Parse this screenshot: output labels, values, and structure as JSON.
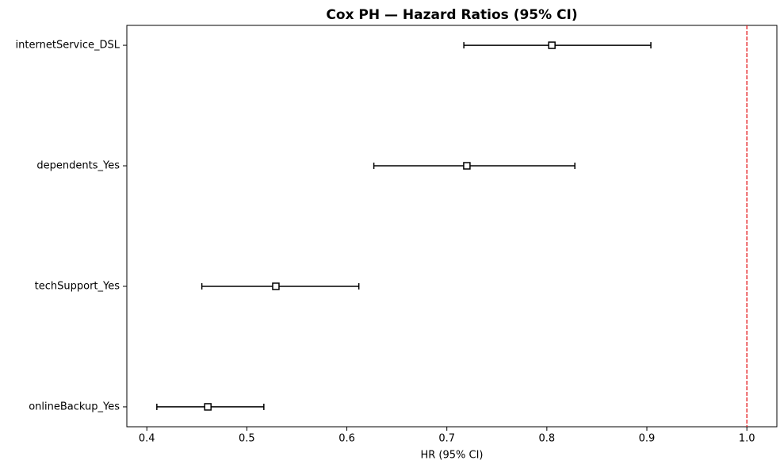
{
  "chart_data": {
    "type": "forest",
    "title": "Cox PH — Hazard Ratios (95% CI)",
    "x_label": "HR (95% CI)",
    "categories": [
      "internetService_DSL",
      "dependents_Yes",
      "techSupport_Yes",
      "onlineBackup_Yes"
    ],
    "values": [
      0.805,
      0.72,
      0.529,
      0.461
    ],
    "lower": [
      0.717,
      0.627,
      0.455,
      0.41
    ],
    "upper": [
      0.904,
      0.828,
      0.612,
      0.517
    ],
    "color": "#000000",
    "xlim": [
      0.38,
      1.03
    ],
    "xticks": [
      0.4,
      0.5,
      0.6,
      0.7,
      0.8,
      0.9,
      {
        "value": 1,
        "label": "1.0"
      }
    ],
    "reference_line": {
      "value": 1,
      "color": "#e41a1c",
      "style": "dashed"
    }
  }
}
